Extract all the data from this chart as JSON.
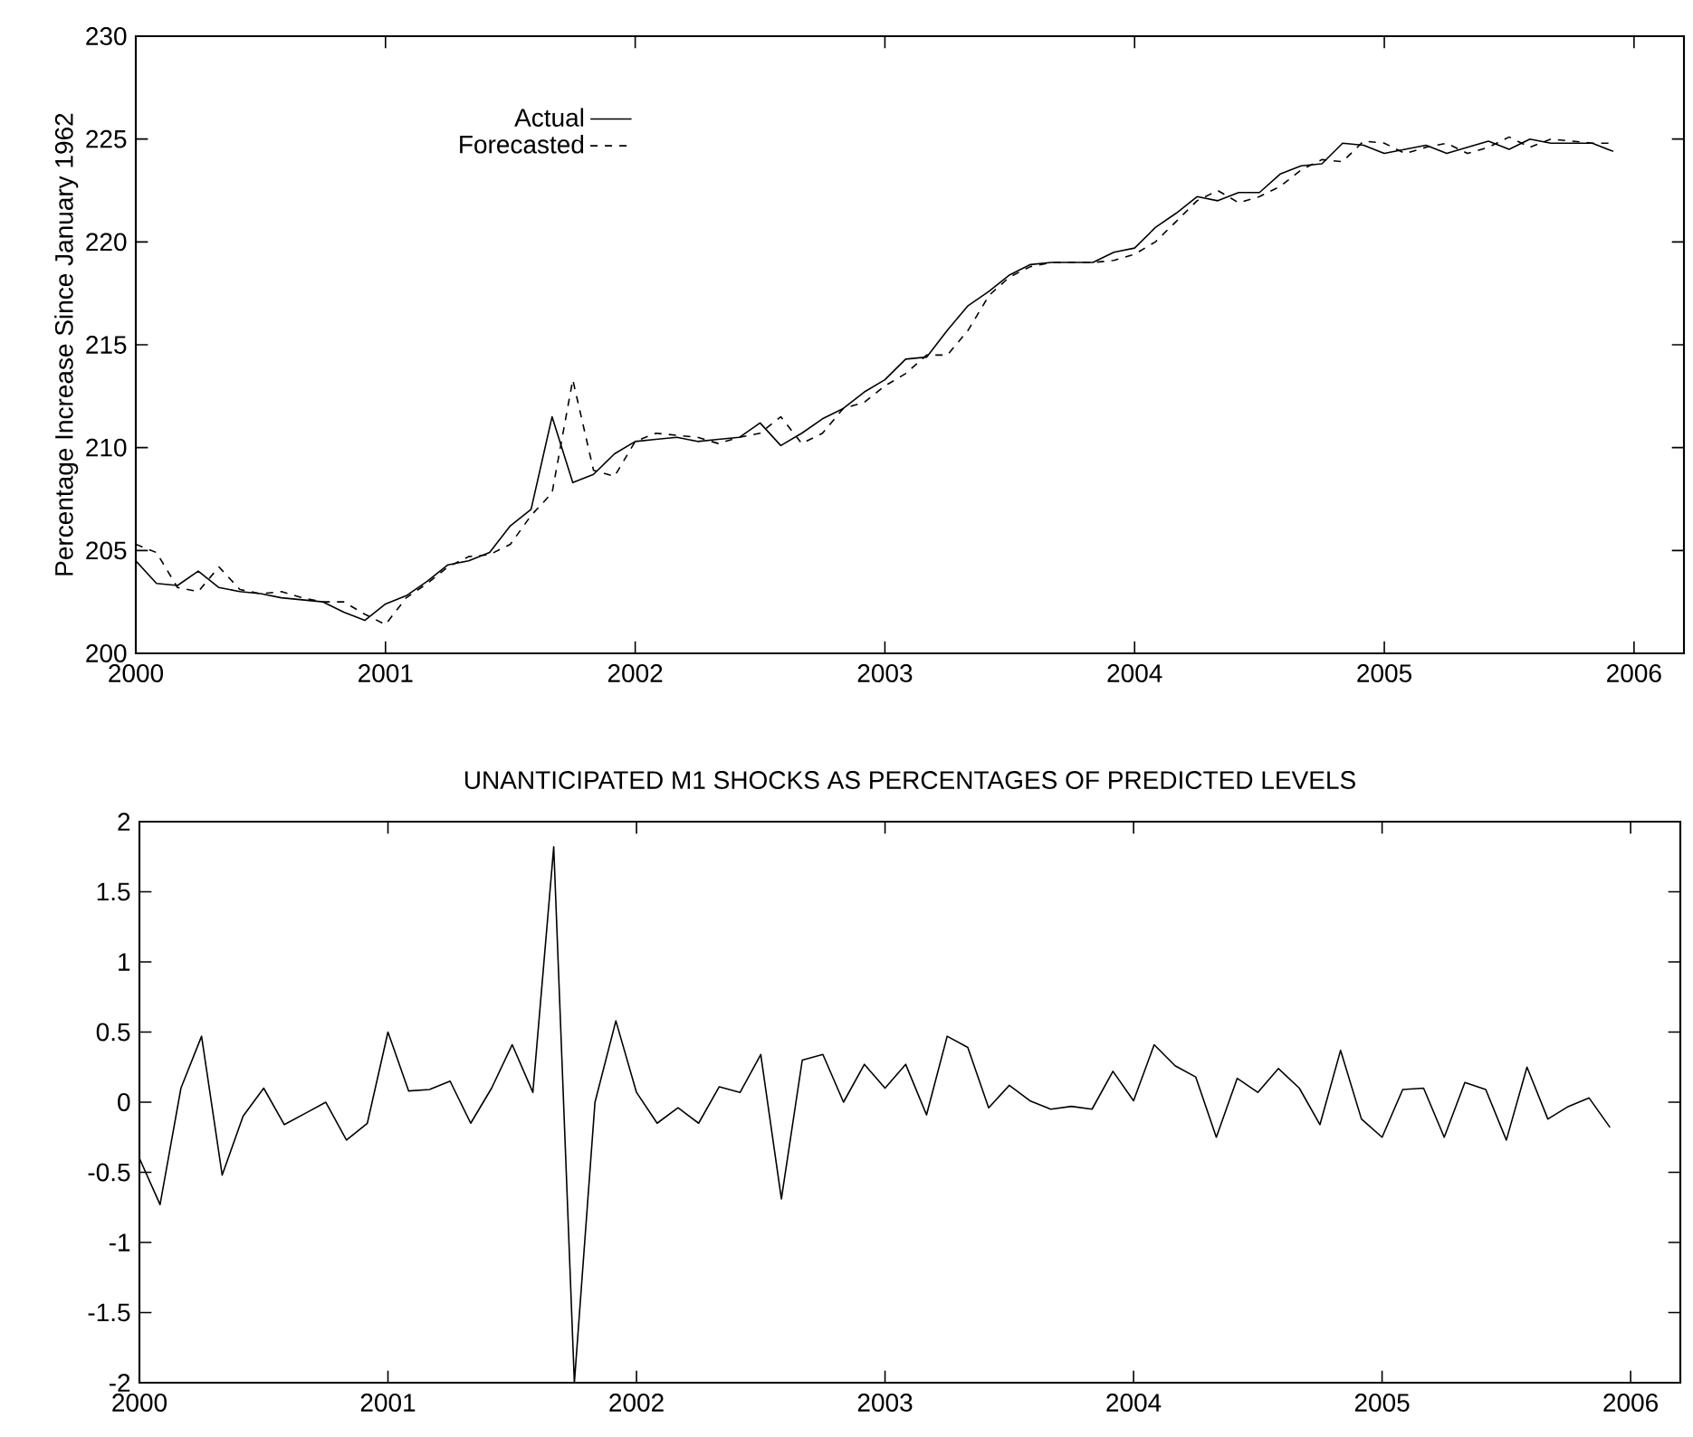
{
  "chart_data": [
    {
      "type": "line",
      "ylabel": "Percentage Increase Since January 1962",
      "legend": "top left",
      "x": [
        2000,
        2000.083,
        2000.167,
        2000.25,
        2000.333,
        2000.417,
        2000.5,
        2000.583,
        2000.667,
        2000.75,
        2000.833,
        2000.917,
        2001,
        2001.083,
        2001.167,
        2001.25,
        2001.333,
        2001.417,
        2001.5,
        2001.583,
        2001.667,
        2001.75,
        2001.833,
        2001.917,
        2002,
        2002.083,
        2002.167,
        2002.25,
        2002.333,
        2002.417,
        2002.5,
        2002.583,
        2002.667,
        2002.75,
        2002.833,
        2002.917,
        2003,
        2003.083,
        2003.167,
        2003.25,
        2003.333,
        2003.417,
        2003.5,
        2003.583,
        2003.667,
        2003.75,
        2003.833,
        2003.917,
        2004,
        2004.083,
        2004.167,
        2004.25,
        2004.333,
        2004.417,
        2004.5,
        2004.583,
        2004.667,
        2004.75,
        2004.833,
        2004.917,
        2005,
        2005.083,
        2005.167,
        2005.25,
        2005.333,
        2005.417,
        2005.5,
        2005.583,
        2005.667,
        2005.75,
        2005.833,
        2005.917
      ],
      "series": [
        {
          "name": "Actual",
          "color": "#000000",
          "line_style": "solid",
          "values": [
            204.5,
            203.4,
            203.3,
            204.0,
            203.2,
            203.0,
            202.9,
            202.7,
            202.6,
            202.5,
            202.0,
            201.6,
            202.4,
            202.8,
            203.5,
            204.3,
            204.5,
            204.9,
            206.2,
            207.0,
            211.5,
            208.3,
            208.7,
            209.7,
            210.3,
            210.4,
            210.5,
            210.3,
            210.4,
            210.5,
            211.2,
            210.1,
            210.7,
            211.4,
            211.9,
            212.7,
            213.3,
            214.3,
            214.4,
            215.7,
            216.9,
            217.6,
            218.4,
            218.9,
            219.0,
            219.0,
            219.0,
            219.5,
            219.7,
            220.7,
            221.4,
            222.2,
            222.0,
            222.4,
            222.4,
            223.3,
            223.7,
            223.8,
            224.8,
            224.7,
            224.3,
            224.5,
            224.7,
            224.3,
            224.6,
            224.9,
            224.5,
            225.0,
            224.8,
            224.8,
            224.8,
            224.4
          ]
        },
        {
          "name": "Forecasted",
          "color": "#000000",
          "line_style": "dashed",
          "values": [
            205.3,
            204.9,
            203.2,
            203.0,
            204.2,
            203.1,
            202.9,
            203.0,
            202.7,
            202.5,
            202.5,
            201.9,
            201.4,
            202.7,
            203.4,
            204.2,
            204.7,
            204.8,
            205.3,
            206.7,
            207.8,
            213.3,
            208.9,
            208.6,
            210.3,
            210.7,
            210.6,
            210.5,
            210.2,
            210.5,
            210.7,
            211.5,
            210.2,
            210.7,
            211.9,
            212.2,
            213.0,
            213.6,
            214.5,
            214.5,
            215.7,
            217.4,
            218.3,
            218.8,
            219.0,
            219.0,
            219.0,
            219.1,
            219.4,
            220.0,
            221.0,
            222.0,
            222.5,
            221.9,
            222.2,
            222.7,
            223.5,
            224.0,
            223.9,
            224.9,
            224.8,
            224.3,
            224.6,
            224.8,
            224.3,
            224.6,
            225.1,
            224.6,
            225.0,
            224.9,
            224.8,
            224.8
          ]
        }
      ],
      "xlim": [
        2000,
        2006.2
      ],
      "xticks": [
        2000,
        2001,
        2002,
        2003,
        2004,
        2005,
        2006
      ],
      "ylim": [
        200,
        230
      ],
      "yticks": [
        200,
        205,
        210,
        215,
        220,
        225,
        230
      ]
    },
    {
      "type": "line",
      "title": "UNANTICIPATED M1 SHOCKS AS PERCENTAGES OF PREDICTED LEVELS",
      "color": "#000000",
      "x": [
        2000,
        2000.083,
        2000.167,
        2000.25,
        2000.333,
        2000.417,
        2000.5,
        2000.583,
        2000.667,
        2000.75,
        2000.833,
        2000.917,
        2001,
        2001.083,
        2001.167,
        2001.25,
        2001.333,
        2001.417,
        2001.5,
        2001.583,
        2001.667,
        2001.75,
        2001.833,
        2001.917,
        2002,
        2002.083,
        2002.167,
        2002.25,
        2002.333,
        2002.417,
        2002.5,
        2002.583,
        2002.667,
        2002.75,
        2002.833,
        2002.917,
        2003,
        2003.083,
        2003.167,
        2003.25,
        2003.333,
        2003.417,
        2003.5,
        2003.583,
        2003.667,
        2003.75,
        2003.833,
        2003.917,
        2004,
        2004.083,
        2004.167,
        2004.25,
        2004.333,
        2004.417,
        2004.5,
        2004.583,
        2004.667,
        2004.75,
        2004.833,
        2004.917,
        2005,
        2005.083,
        2005.167,
        2005.25,
        2005.333,
        2005.417,
        2005.5,
        2005.583,
        2005.667,
        2005.75,
        2005.833,
        2005.917
      ],
      "values": [
        -0.4,
        -0.73,
        0.1,
        0.47,
        -0.52,
        -0.1,
        0.1,
        -0.16,
        -0.08,
        0.0,
        -0.27,
        -0.15,
        0.5,
        0.08,
        0.09,
        0.15,
        -0.15,
        0.1,
        0.41,
        0.07,
        1.82,
        -2.0,
        0.0,
        0.58,
        0.07,
        -0.15,
        -0.04,
        -0.15,
        0.11,
        0.07,
        0.34,
        -0.69,
        0.3,
        0.34,
        0.0,
        0.27,
        0.1,
        0.27,
        -0.09,
        0.47,
        0.39,
        -0.04,
        0.12,
        0.01,
        -0.05,
        -0.03,
        -0.05,
        0.22,
        0.01,
        0.41,
        0.26,
        0.18,
        -0.25,
        0.17,
        0.07,
        0.24,
        0.1,
        -0.16,
        0.37,
        -0.12,
        -0.25,
        0.09,
        0.1,
        -0.25,
        0.14,
        0.09,
        -0.27,
        0.25,
        -0.12,
        -0.03,
        0.03,
        -0.18
      ],
      "xlim": [
        2000,
        2006.2
      ],
      "xticks": [
        2000,
        2001,
        2002,
        2003,
        2004,
        2005,
        2006
      ],
      "ylim": [
        -2,
        2
      ],
      "yticks": [
        -2,
        -1.5,
        -1,
        -0.5,
        0,
        0.5,
        1,
        1.5,
        2
      ]
    }
  ]
}
